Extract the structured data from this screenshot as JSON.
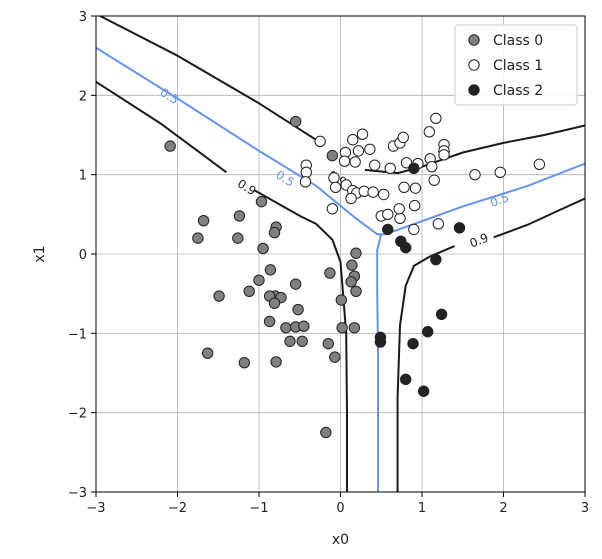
{
  "chart_data": {
    "type": "scatter",
    "xlabel": "x0",
    "ylabel": "x1",
    "xlim": [
      -3,
      3
    ],
    "ylim": [
      -3,
      3
    ],
    "xticks": [
      "−3",
      "−2",
      "−1",
      "0",
      "1",
      "2",
      "3"
    ],
    "yticks": [
      "−3",
      "−2",
      "−1",
      "0",
      "1",
      "2",
      "3"
    ],
    "grid": true,
    "legend_position": "top-right",
    "series": [
      {
        "name": "Class 0",
        "color": "#808080",
        "marker": "filled-circle",
        "points": [
          [
            -0.55,
            1.67
          ],
          [
            -2.09,
            1.36
          ],
          [
            -0.1,
            1.24
          ],
          [
            -1.68,
            0.42
          ],
          [
            -1.24,
            0.48
          ],
          [
            -0.97,
            0.66
          ],
          [
            -1.75,
            0.2
          ],
          [
            -1.26,
            0.2
          ],
          [
            -0.79,
            0.34
          ],
          [
            -0.81,
            0.27
          ],
          [
            -0.95,
            0.07
          ],
          [
            -0.86,
            -0.2
          ],
          [
            -1.0,
            -0.33
          ],
          [
            -0.55,
            -0.38
          ],
          [
            -0.8,
            -0.53
          ],
          [
            -0.73,
            -0.55
          ],
          [
            -0.87,
            -0.53
          ],
          [
            -0.52,
            -0.7
          ],
          [
            -1.49,
            -0.53
          ],
          [
            -1.12,
            -0.47
          ],
          [
            -0.81,
            -0.62
          ],
          [
            -0.87,
            -0.85
          ],
          [
            -0.67,
            -0.93
          ],
          [
            -0.55,
            -0.92
          ],
          [
            -0.45,
            -0.91
          ],
          [
            -0.62,
            -1.1
          ],
          [
            -0.47,
            -1.1
          ],
          [
            -0.79,
            -1.36
          ],
          [
            -1.63,
            -1.25
          ],
          [
            -1.18,
            -1.37
          ],
          [
            -0.15,
            -1.13
          ],
          [
            -0.07,
            -1.3
          ],
          [
            0.02,
            -0.93
          ],
          [
            0.17,
            -0.93
          ],
          [
            0.01,
            -0.58
          ],
          [
            -0.13,
            -0.24
          ],
          [
            0.14,
            -0.14
          ],
          [
            0.17,
            -0.28
          ],
          [
            0.13,
            -0.35
          ],
          [
            0.19,
            -0.47
          ],
          [
            0.19,
            0.01
          ],
          [
            -0.18,
            -2.25
          ]
        ]
      },
      {
        "name": "Class 1",
        "color": "#ffffff",
        "marker": "open-circle",
        "points": [
          [
            -0.25,
            1.42
          ],
          [
            0.15,
            1.44
          ],
          [
            0.27,
            1.51
          ],
          [
            0.06,
            1.28
          ],
          [
            0.22,
            1.3
          ],
          [
            0.36,
            1.32
          ],
          [
            0.05,
            1.17
          ],
          [
            0.18,
            1.16
          ],
          [
            0.42,
            1.12
          ],
          [
            -0.42,
            1.12
          ],
          [
            -0.42,
            1.03
          ],
          [
            -0.43,
            0.91
          ],
          [
            -0.08,
            0.96
          ],
          [
            0.07,
            0.87
          ],
          [
            -0.06,
            0.84
          ],
          [
            0.15,
            0.8
          ],
          [
            0.2,
            0.77
          ],
          [
            0.29,
            0.79
          ],
          [
            0.4,
            0.78
          ],
          [
            0.53,
            0.75
          ],
          [
            0.13,
            0.7
          ],
          [
            -0.1,
            0.57
          ],
          [
            0.5,
            0.48
          ],
          [
            0.58,
            0.5
          ],
          [
            0.73,
            0.45
          ],
          [
            0.91,
            0.61
          ],
          [
            0.72,
            0.57
          ],
          [
            0.65,
            1.36
          ],
          [
            0.73,
            1.4
          ],
          [
            0.77,
            1.47
          ],
          [
            0.95,
            1.14
          ],
          [
            1.1,
            1.2
          ],
          [
            1.12,
            1.1
          ],
          [
            0.81,
            1.15
          ],
          [
            0.78,
            0.84
          ],
          [
            0.92,
            0.83
          ],
          [
            0.9,
            0.31
          ],
          [
            1.15,
            0.93
          ],
          [
            1.2,
            0.38
          ],
          [
            1.09,
            1.54
          ],
          [
            1.17,
            1.71
          ],
          [
            1.27,
            1.38
          ],
          [
            1.27,
            1.3
          ],
          [
            1.27,
            1.25
          ],
          [
            1.65,
            1.0
          ],
          [
            1.96,
            1.03
          ],
          [
            2.44,
            1.13
          ],
          [
            0.61,
            1.08
          ]
        ]
      },
      {
        "name": "Class 2",
        "color": "#222222",
        "marker": "filled-circle",
        "points": [
          [
            0.58,
            0.31
          ],
          [
            0.74,
            0.16
          ],
          [
            0.8,
            0.08
          ],
          [
            0.9,
            1.08
          ],
          [
            1.46,
            0.33
          ],
          [
            1.17,
            -0.07
          ],
          [
            1.24,
            -0.76
          ],
          [
            1.07,
            -0.98
          ],
          [
            0.89,
            -1.13
          ],
          [
            0.49,
            -1.05
          ],
          [
            0.49,
            -1.11
          ],
          [
            0.8,
            -1.58
          ],
          [
            1.02,
            -1.73
          ]
        ]
      }
    ],
    "contours": [
      {
        "level": "0.5",
        "color": "#6495ed",
        "paths": [
          [
            [
              -3.0,
              2.6
            ],
            [
              -2.0,
              1.96
            ],
            [
              -1.0,
              1.3
            ],
            [
              -0.3,
              0.86
            ],
            [
              0.2,
              0.44
            ],
            [
              0.45,
              0.25
            ],
            [
              0.55,
              0.25
            ],
            [
              0.8,
              0.34
            ],
            [
              1.5,
              0.6
            ],
            [
              2.3,
              0.86
            ],
            [
              3.0,
              1.14
            ]
          ],
          [
            [
              0.5,
              0.26
            ],
            [
              0.45,
              0.05
            ],
            [
              0.45,
              -0.5
            ],
            [
              0.46,
              -1.2
            ],
            [
              0.46,
              -3.0
            ]
          ]
        ],
        "labels": [
          {
            "text": "0.5",
            "x": -2.1,
            "y": 1.99,
            "angle": 32
          },
          {
            "text": "0.5",
            "x": -0.68,
            "y": 0.95,
            "angle": 33
          },
          {
            "text": "0.5",
            "x": 1.95,
            "y": 0.68,
            "angle": -20
          }
        ]
      },
      {
        "level": "0.9",
        "color": "#1a1a1a",
        "paths": [
          [
            [
              -2.95,
              3.0
            ],
            [
              -2.0,
              2.5
            ],
            [
              -1.0,
              1.9
            ],
            [
              -0.3,
              1.44
            ]
          ],
          [
            [
              0.3,
              1.06
            ],
            [
              0.7,
              1.02
            ],
            [
              1.0,
              1.1
            ],
            [
              1.5,
              1.28
            ],
            [
              2.0,
              1.4
            ],
            [
              2.5,
              1.5
            ],
            [
              3.0,
              1.62
            ]
          ],
          [
            [
              -3.0,
              2.17
            ],
            [
              -2.2,
              1.64
            ],
            [
              -1.4,
              1.03
            ]
          ],
          [
            [
              -1.05,
              0.8
            ],
            [
              -0.5,
              0.48
            ],
            [
              -0.3,
              0.38
            ],
            [
              -0.1,
              0.18
            ],
            [
              0.0,
              -0.1
            ],
            [
              0.07,
              -1.0
            ],
            [
              0.08,
              -2.0
            ],
            [
              0.08,
              -3.0
            ]
          ],
          [
            [
              0.7,
              -3.0
            ],
            [
              0.7,
              -1.8
            ],
            [
              0.73,
              -0.9
            ],
            [
              0.8,
              -0.4
            ],
            [
              0.9,
              -0.15
            ],
            [
              1.1,
              -0.03
            ],
            [
              1.4,
              0.1
            ]
          ],
          [
            [
              1.88,
              0.21
            ],
            [
              2.3,
              0.37
            ],
            [
              2.7,
              0.56
            ],
            [
              3.0,
              0.7
            ]
          ]
        ],
        "labels": [
          {
            "text": "0.9",
            "x": -1.15,
            "y": 0.84,
            "angle": 32
          },
          {
            "text": "0.9",
            "x": -0.04,
            "y": 0.95,
            "angle": 30
          },
          {
            "text": "0.9",
            "x": 1.7,
            "y": 0.17,
            "angle": -22
          }
        ]
      }
    ]
  }
}
